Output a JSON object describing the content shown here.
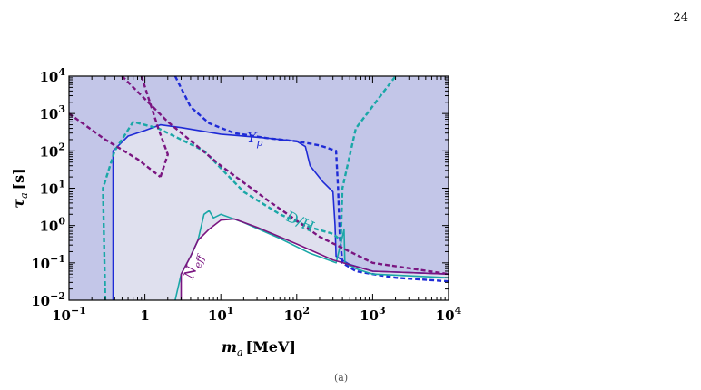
{
  "page": {
    "number": "24",
    "caption_stub": "(a)"
  },
  "chart_data": {
    "type": "line",
    "title": "",
    "xlabel": {
      "main": "m",
      "sub": "a",
      "unit": "[MeV]"
    },
    "ylabel": {
      "main": "τ",
      "sub": "a",
      "unit": "[s]"
    },
    "xscale": "log",
    "yscale": "log",
    "xlim": [
      0.1,
      10000
    ],
    "ylim": [
      0.01,
      10000
    ],
    "x_ticks": [
      {
        "value": 0.1,
        "base": "10",
        "exp": "−1"
      },
      {
        "value": 1,
        "base": "1",
        "exp": ""
      },
      {
        "value": 10,
        "base": "10",
        "exp": "1"
      },
      {
        "value": 100,
        "base": "10",
        "exp": "2"
      },
      {
        "value": 1000,
        "base": "10",
        "exp": "3"
      },
      {
        "value": 10000,
        "base": "10",
        "exp": "4"
      }
    ],
    "y_ticks": [
      {
        "value": 0.01,
        "base": "10",
        "exp": "−2"
      },
      {
        "value": 0.1,
        "base": "10",
        "exp": "−1"
      },
      {
        "value": 1,
        "base": "10",
        "exp": "0"
      },
      {
        "value": 10,
        "base": "10",
        "exp": "1"
      },
      {
        "value": 100,
        "base": "10",
        "exp": "2"
      },
      {
        "value": 1000,
        "base": "10",
        "exp": "3"
      },
      {
        "value": 10000,
        "base": "10",
        "exp": "4"
      }
    ],
    "colors": {
      "outer_region": "#c3c6e8",
      "inner_region": "#dfe0ee",
      "allowed_region": "#ffffff",
      "yp": "#1f2bd6",
      "dh": "#1aa7a7",
      "neff": "#7a1580"
    },
    "annotations": [
      {
        "id": "yp",
        "text": "Y",
        "sub": "p",
        "x": 22,
        "y": 170,
        "color": "#1f2bd6"
      },
      {
        "id": "dh",
        "text": "D/H",
        "sub": "",
        "x": 70,
        "y": 1.4,
        "color": "#1aa7a7"
      },
      {
        "id": "neff",
        "text": "N",
        "sub": "eff",
        "x": 4.3,
        "y": 0.035,
        "color": "#7a1580"
      }
    ],
    "regions": {
      "inner": [
        [
          0.38,
          0.01
        ],
        [
          0.38,
          100
        ],
        [
          0.6,
          250
        ],
        [
          1.6,
          500
        ],
        [
          3,
          400
        ],
        [
          10,
          280
        ],
        [
          40,
          220
        ],
        [
          100,
          180
        ],
        [
          130,
          130
        ],
        [
          150,
          40
        ],
        [
          220,
          15
        ],
        [
          300,
          8
        ],
        [
          320,
          1
        ],
        [
          330,
          0.15
        ],
        [
          500,
          0.09
        ],
        [
          1000,
          0.06
        ],
        [
          10000,
          0.05
        ],
        [
          10000,
          0.01
        ],
        [
          0.38,
          0.01
        ]
      ],
      "allowed": [
        [
          3,
          0.01
        ],
        [
          3,
          0.05
        ],
        [
          4,
          0.15
        ],
        [
          5,
          0.4
        ],
        [
          7,
          0.8
        ],
        [
          10,
          1.4
        ],
        [
          15,
          1.5
        ],
        [
          30,
          0.9
        ],
        [
          100,
          0.32
        ],
        [
          300,
          0.12
        ],
        [
          1000,
          0.05
        ],
        [
          10000,
          0.035
        ],
        [
          10000,
          0.01
        ],
        [
          3,
          0.01
        ]
      ]
    },
    "series": [
      {
        "id": "yp_solid",
        "style": "solid",
        "color": "#1f2bd6",
        "points": [
          [
            0.38,
            0.01
          ],
          [
            0.38,
            100
          ],
          [
            0.6,
            250
          ],
          [
            1,
            350
          ],
          [
            1.6,
            500
          ],
          [
            3,
            420
          ],
          [
            10,
            280
          ],
          [
            40,
            220
          ],
          [
            100,
            180
          ],
          [
            130,
            130
          ],
          [
            150,
            40
          ],
          [
            220,
            15
          ],
          [
            300,
            8
          ],
          [
            320,
            1
          ],
          [
            330,
            0.15
          ],
          [
            500,
            0.09
          ],
          [
            1000,
            0.06
          ],
          [
            10000,
            0.05
          ]
        ]
      },
      {
        "id": "yp_dashed",
        "style": "dashed",
        "color": "#1f2bd6",
        "points": [
          [
            2.5,
            10000
          ],
          [
            4,
            1500
          ],
          [
            7,
            550
          ],
          [
            15,
            300
          ],
          [
            40,
            220
          ],
          [
            100,
            180
          ],
          [
            200,
            140
          ],
          [
            330,
            100
          ],
          [
            350,
            10
          ],
          [
            370,
            0.5
          ],
          [
            400,
            0.1
          ],
          [
            600,
            0.06
          ],
          [
            1000,
            0.05
          ],
          [
            2000,
            0.04
          ],
          [
            10000,
            0.032
          ]
        ]
      },
      {
        "id": "dh_solid",
        "style": "solid",
        "color": "#1aa7a7",
        "points": [
          [
            2.5,
            0.01
          ],
          [
            3,
            0.05
          ],
          [
            4,
            0.15
          ],
          [
            5,
            0.4
          ],
          [
            6,
            2
          ],
          [
            7,
            2.5
          ],
          [
            8,
            1.6
          ],
          [
            10,
            2.0
          ],
          [
            20,
            1.2
          ],
          [
            60,
            0.45
          ],
          [
            150,
            0.18
          ],
          [
            330,
            0.1
          ],
          [
            400,
            0.5
          ],
          [
            420,
            0.8
          ],
          [
            430,
            0.1
          ],
          [
            600,
            0.07
          ],
          [
            1000,
            0.05
          ],
          [
            10000,
            0.04
          ]
        ]
      },
      {
        "id": "dh_dashed",
        "style": "dashed",
        "color": "#1aa7a7",
        "points": [
          [
            0.3,
            0.01
          ],
          [
            0.28,
            10
          ],
          [
            0.4,
            100
          ],
          [
            0.7,
            600
          ],
          [
            1.5,
            400
          ],
          [
            6,
            100
          ],
          [
            20,
            8
          ],
          [
            60,
            2
          ],
          [
            150,
            0.9
          ],
          [
            300,
            0.6
          ],
          [
            380,
            0.4
          ],
          [
            400,
            10
          ],
          [
            600,
            400
          ],
          [
            2000,
            10000
          ]
        ]
      },
      {
        "id": "neff_solid",
        "style": "solid",
        "color": "#7a1580",
        "points": [
          [
            3,
            0.01
          ],
          [
            3,
            0.05
          ],
          [
            4,
            0.15
          ],
          [
            5,
            0.4
          ],
          [
            7,
            0.8
          ],
          [
            10,
            1.4
          ],
          [
            15,
            1.5
          ],
          [
            30,
            0.9
          ],
          [
            100,
            0.32
          ],
          [
            300,
            0.12
          ],
          [
            1000,
            0.06
          ],
          [
            10000,
            0.05
          ]
        ]
      },
      {
        "id": "neff_dashed_a",
        "style": "dashed",
        "color": "#7a1580",
        "points": [
          [
            0.1,
            1000
          ],
          [
            0.3,
            200
          ],
          [
            0.8,
            60
          ],
          [
            1.6,
            20
          ]
        ]
      },
      {
        "id": "neff_dashed_b",
        "style": "dashed",
        "color": "#7a1580",
        "points": [
          [
            0.9,
            10000
          ],
          [
            1.5,
            400
          ],
          [
            2,
            80
          ],
          [
            1.6,
            20
          ]
        ]
      },
      {
        "id": "neff_dashed_c",
        "style": "dashed",
        "color": "#7a1580",
        "points": [
          [
            0.5,
            10000
          ],
          [
            2,
            600
          ],
          [
            10,
            40
          ],
          [
            40,
            5
          ],
          [
            200,
            0.5
          ],
          [
            1000,
            0.1
          ],
          [
            10000,
            0.05
          ]
        ]
      }
    ]
  }
}
